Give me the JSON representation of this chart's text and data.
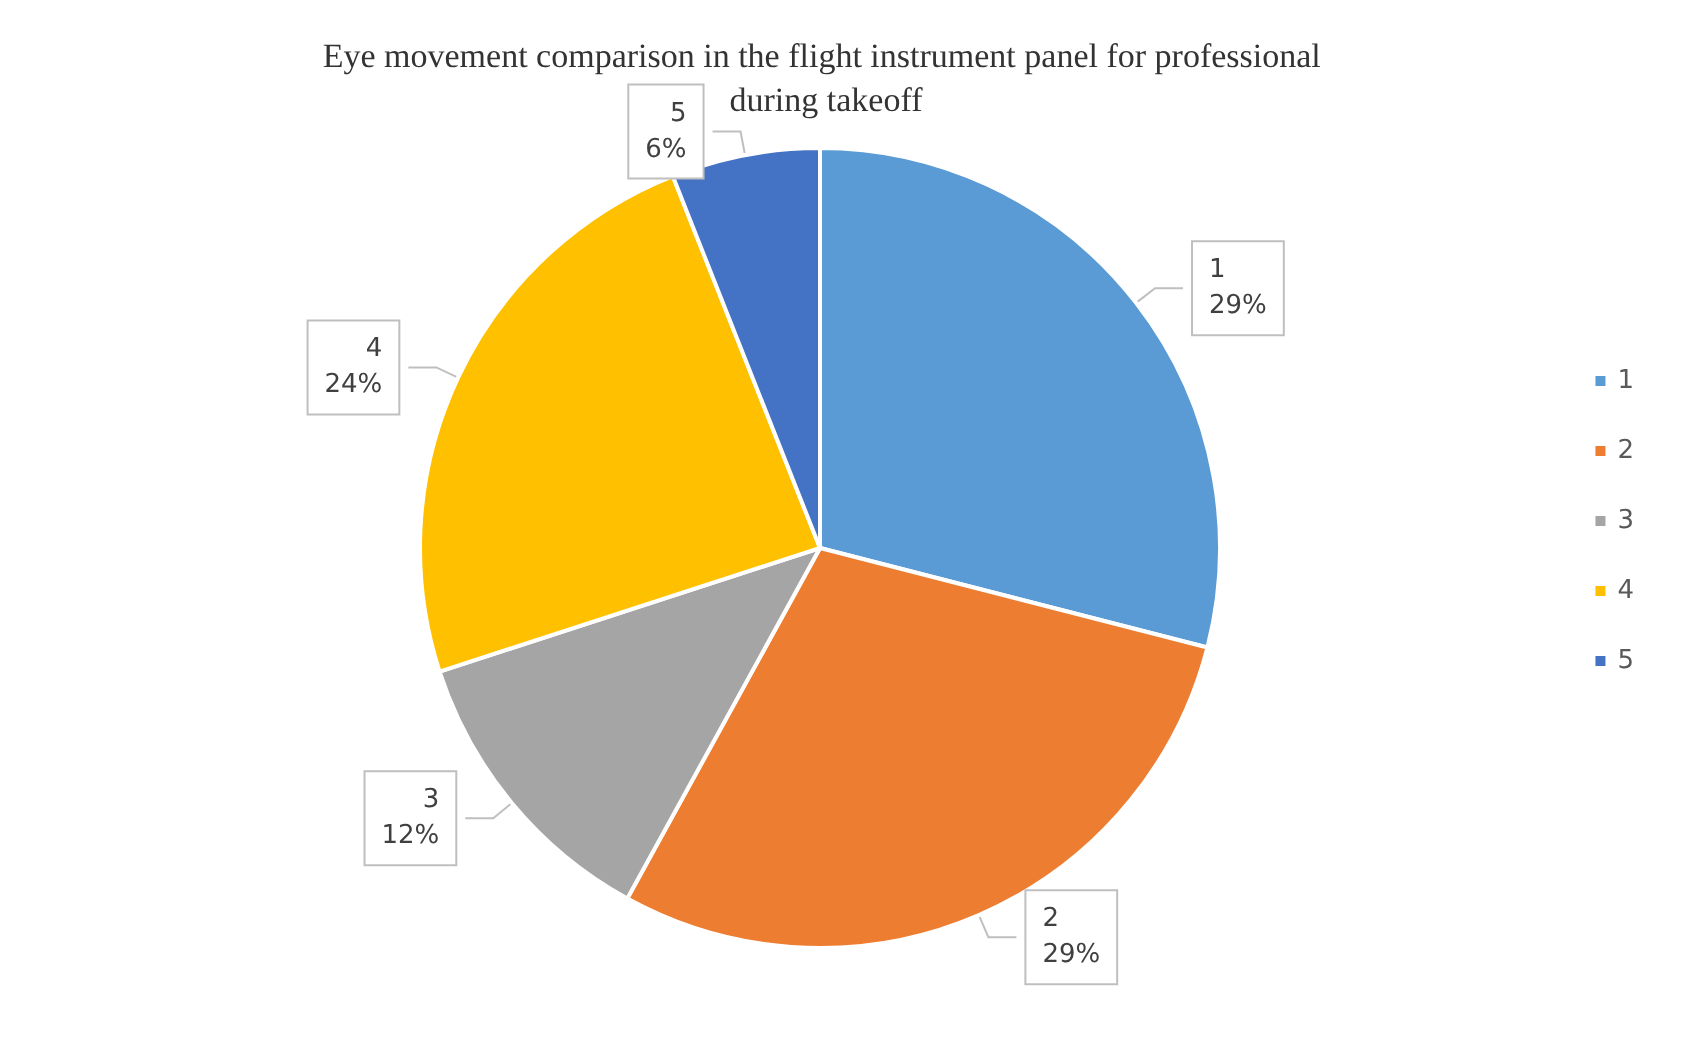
{
  "chart_data": {
    "type": "pie",
    "title": "Eye movement comparison in the flight instrument panel for professional during takeoff",
    "categories": [
      "1",
      "2",
      "3",
      "4",
      "5"
    ],
    "values": [
      29,
      29,
      12,
      24,
      6
    ],
    "value_labels": [
      "29%",
      "29%",
      "12%",
      "24%",
      "6%"
    ],
    "colors": [
      "#5b9bd5",
      "#ed7d31",
      "#a5a5a5",
      "#ffc000",
      "#4472c4"
    ],
    "legend": "right"
  }
}
